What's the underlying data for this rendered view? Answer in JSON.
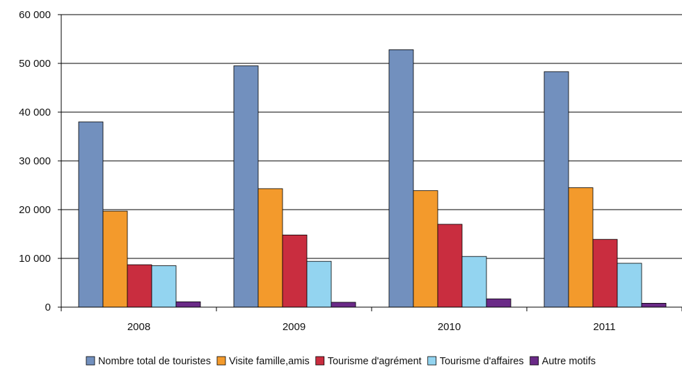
{
  "chart_data": {
    "type": "bar",
    "categories": [
      "2008",
      "2009",
      "2010",
      "2011"
    ],
    "series": [
      {
        "name": "Nombre total de touristes",
        "color": "#7290BE",
        "values": [
          38000,
          49500,
          52800,
          48300
        ]
      },
      {
        "name": "Visite famille,amis",
        "color": "#F39A2C",
        "values": [
          19700,
          24300,
          23900,
          24500
        ]
      },
      {
        "name": "Tourisme d'agrément",
        "color": "#C92D3F",
        "values": [
          8700,
          14800,
          17000,
          13900
        ]
      },
      {
        "name": "Tourisme d'affaires",
        "color": "#93D4F0",
        "values": [
          8500,
          9400,
          10400,
          9000
        ]
      },
      {
        "name": "Autre motifs",
        "color": "#6A2A87",
        "values": [
          1100,
          1000,
          1700,
          800
        ]
      }
    ],
    "y_ticks": [
      "0",
      "10 000",
      "20 000",
      "30 000",
      "40 000",
      "50 000",
      "60 000"
    ],
    "ylim": [
      0,
      60000
    ],
    "grid": "horizontal",
    "legend": "bottom",
    "title": "",
    "xlabel": "",
    "ylabel": ""
  }
}
